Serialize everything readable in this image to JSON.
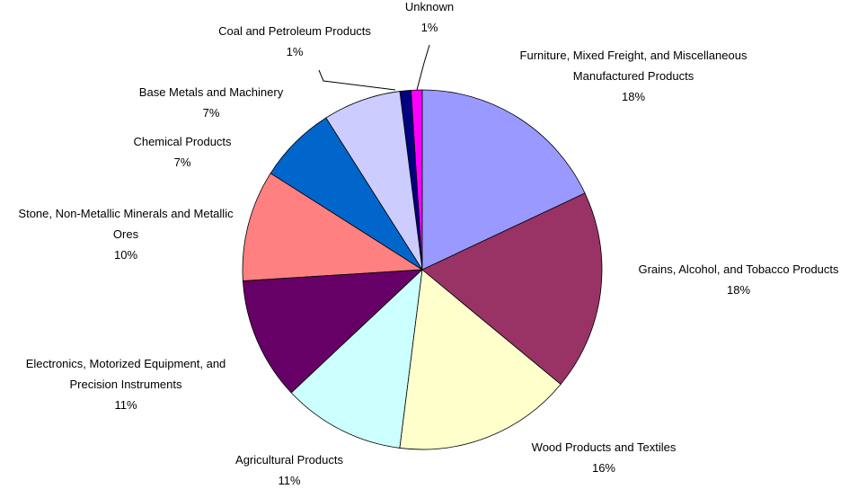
{
  "chart_data": {
    "type": "pie",
    "categories": [
      "Furniture, Mixed Freight, and Miscellaneous Manufactured Products",
      "Grains, Alcohol, and Tobacco Products",
      "Wood Products and Textiles",
      "Agricultural Products",
      "Electronics, Motorized Equipment, and Precision Instruments",
      "Stone, Non-Metallic Minerals and Metallic Ores",
      "Chemical Products",
      "Base Metals and Machinery",
      "Coal and Petroleum Products",
      "Unknown"
    ],
    "values": [
      18,
      18,
      16,
      11,
      11,
      10,
      7,
      7,
      1,
      1
    ],
    "value_labels": [
      "18%",
      "18%",
      "16%",
      "11%",
      "11%",
      "10%",
      "7%",
      "7%",
      "1%",
      "1%"
    ],
    "colors": [
      "#9999ff",
      "#993366",
      "#ffffcc",
      "#ccffff",
      "#660066",
      "#ff8080",
      "#0066cc",
      "#ccccff",
      "#000080",
      "#ff00ff"
    ]
  }
}
